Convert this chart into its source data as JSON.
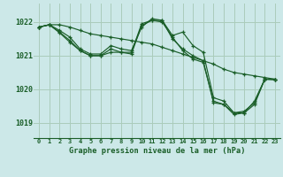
{
  "title": "Graphe pression niveau de la mer (hPa)",
  "bg_color": "#cce8e8",
  "grid_color": "#aaccbb",
  "line_color": "#1a5e28",
  "xlim": [
    -0.5,
    23.5
  ],
  "ylim": [
    1018.55,
    1022.55
  ],
  "yticks": [
    1019,
    1020,
    1021,
    1022
  ],
  "lines": [
    {
      "x": [
        0,
        1,
        2,
        3,
        4,
        5,
        6,
        7,
        8,
        9,
        10,
        11,
        12,
        13,
        14,
        15,
        16,
        17,
        18,
        19,
        20,
        21,
        22,
        23
      ],
      "y": [
        1021.85,
        1021.92,
        1021.92,
        1021.85,
        1021.75,
        1021.65,
        1021.6,
        1021.55,
        1021.5,
        1021.45,
        1021.4,
        1021.35,
        1021.25,
        1021.15,
        1021.05,
        1020.95,
        1020.85,
        1020.75,
        1020.6,
        1020.5,
        1020.45,
        1020.4,
        1020.35,
        1020.3
      ]
    },
    {
      "x": [
        0,
        1,
        2,
        3,
        4,
        5,
        6,
        7,
        8,
        9,
        10,
        11,
        12,
        13,
        14,
        15,
        16,
        17,
        18,
        19,
        20,
        21,
        22,
        23
      ],
      "y": [
        1021.85,
        1021.92,
        1021.75,
        1021.55,
        1021.2,
        1021.05,
        1021.05,
        1021.3,
        1021.2,
        1021.15,
        1021.85,
        1022.1,
        1022.05,
        1021.6,
        1021.7,
        1021.3,
        1021.1,
        1019.75,
        1019.65,
        1019.3,
        1019.35,
        1019.6,
        1020.3,
        1020.3
      ]
    },
    {
      "x": [
        0,
        1,
        2,
        3,
        4,
        5,
        6,
        7,
        8,
        9,
        10,
        11,
        12,
        13,
        14,
        15,
        16,
        17,
        18,
        19,
        20,
        21,
        22,
        23
      ],
      "y": [
        1021.85,
        1021.92,
        1021.7,
        1021.45,
        1021.15,
        1021.0,
        1021.0,
        1021.2,
        1021.1,
        1021.05,
        1021.9,
        1022.05,
        1022.0,
        1021.55,
        1021.15,
        1020.9,
        1020.8,
        1019.65,
        1019.55,
        1019.25,
        1019.3,
        1019.65,
        1020.3,
        1020.3
      ]
    },
    {
      "x": [
        0,
        1,
        2,
        3,
        4,
        5,
        6,
        7,
        8,
        9,
        10,
        11,
        12,
        13,
        14,
        15,
        16,
        17,
        18,
        19,
        20,
        21,
        22,
        23
      ],
      "y": [
        1021.85,
        1021.92,
        1021.68,
        1021.4,
        1021.15,
        1021.0,
        1021.0,
        1021.1,
        1021.1,
        1021.1,
        1021.95,
        1022.05,
        1022.05,
        1021.5,
        1021.2,
        1021.0,
        1020.85,
        1019.6,
        1019.55,
        1019.3,
        1019.3,
        1019.55,
        1020.3,
        1020.28
      ]
    }
  ]
}
